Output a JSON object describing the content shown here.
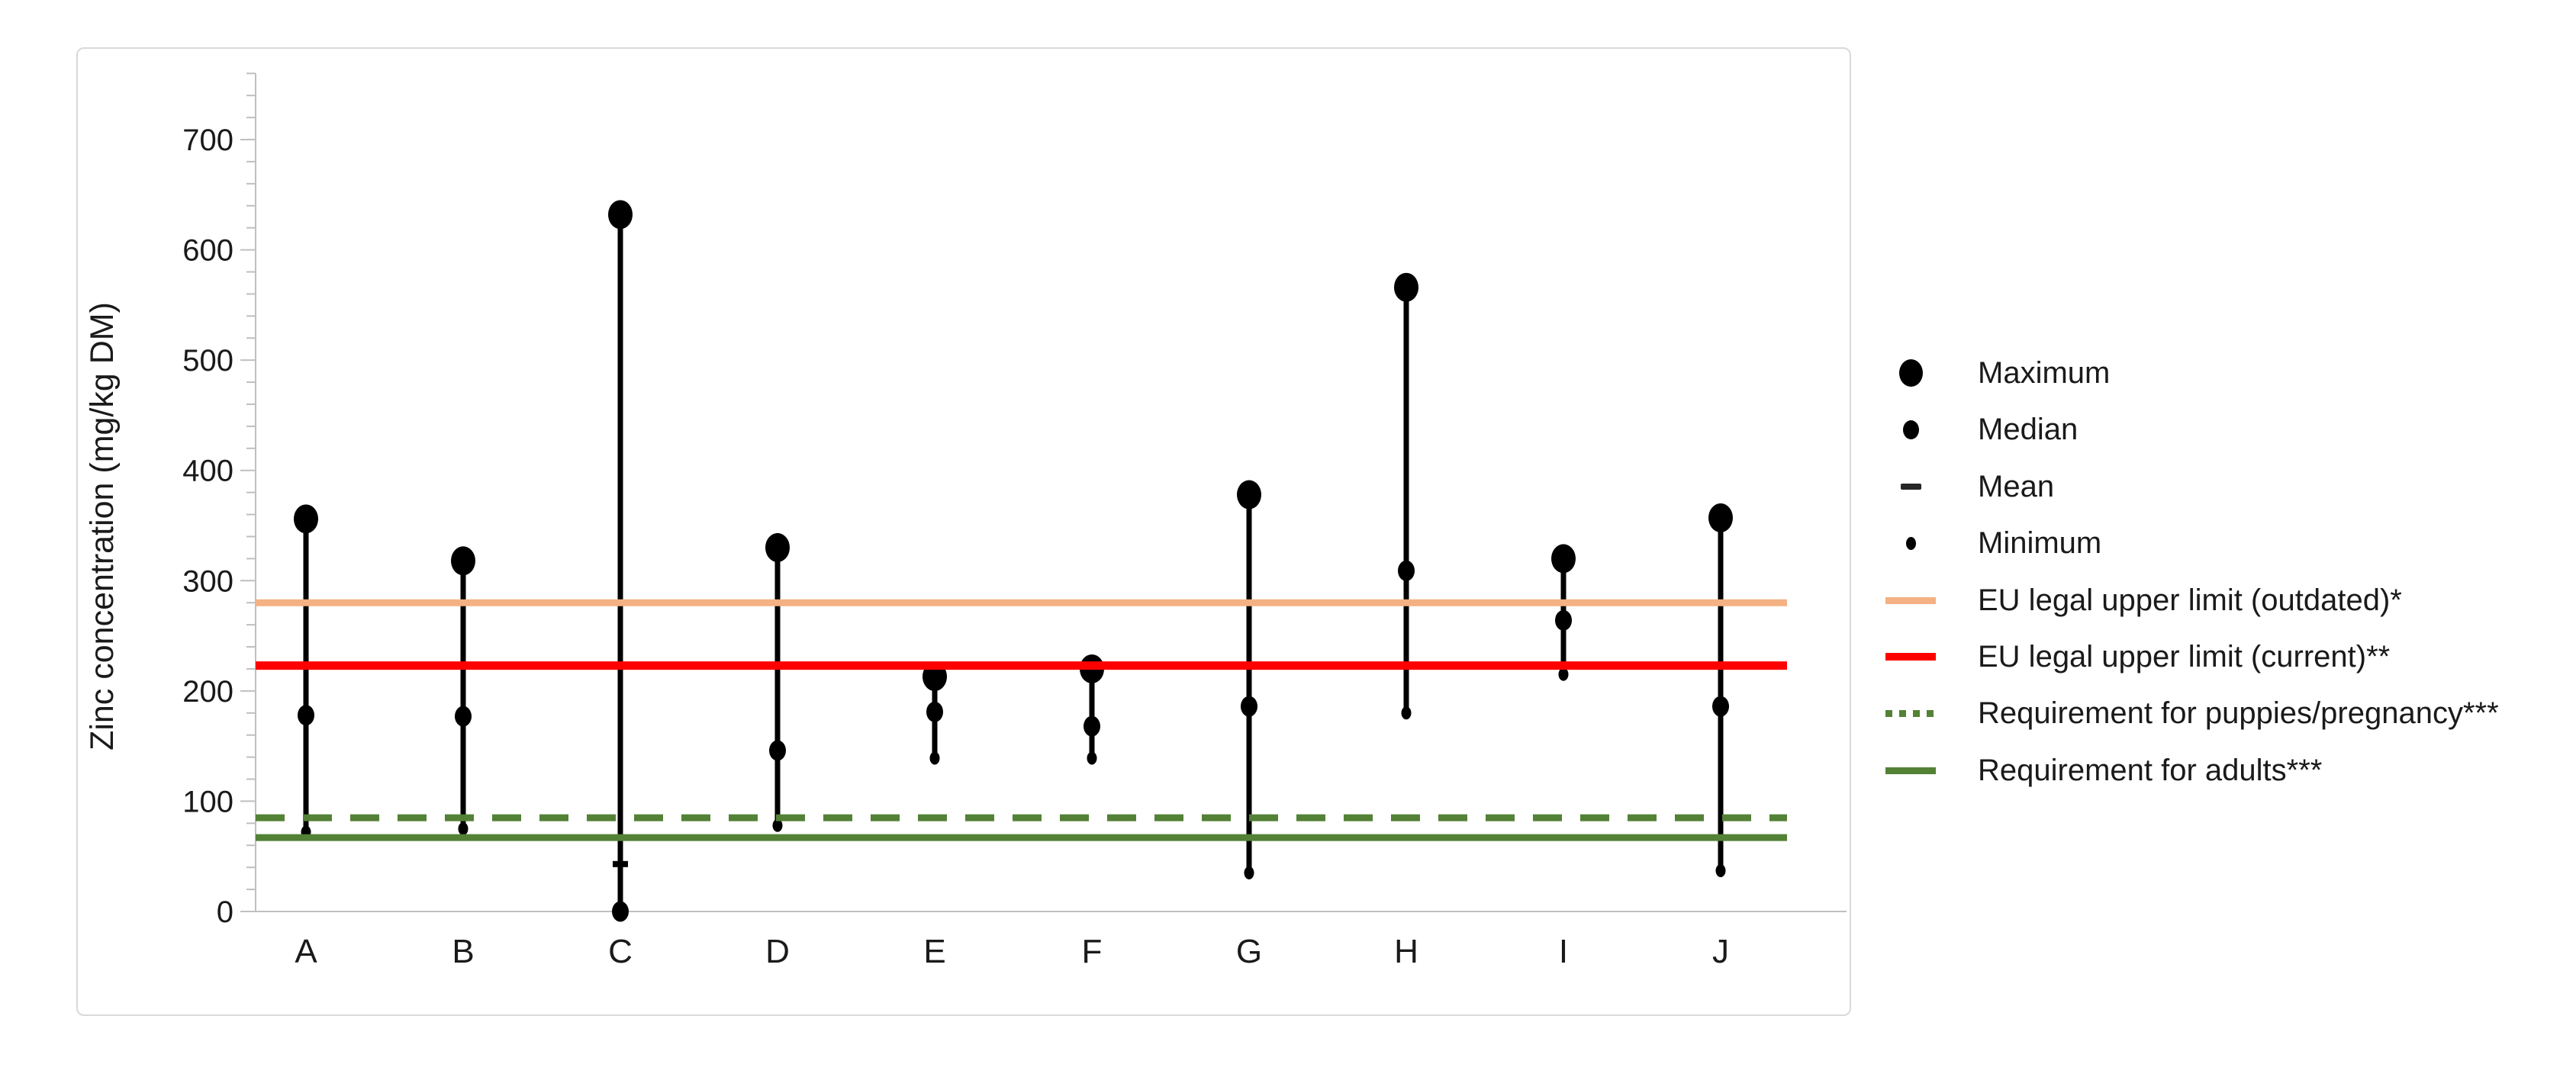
{
  "page": {
    "background": "#FFFFFF"
  },
  "colors": {
    "axis": "#BFBFBF",
    "card_border": "#D9D9D9",
    "text": "#1A1A1A",
    "stem": "#000000",
    "limit_outdated": "#F4B183",
    "limit_current": "#FF0000",
    "req_puppies": "#538135",
    "req_adults": "#538135"
  },
  "chart_data": {
    "type": "stem-range",
    "title": "",
    "xlabel": "",
    "ylabel": "Zinc concentration (mg/kg DM)",
    "categories": [
      "A",
      "B",
      "C",
      "D",
      "E",
      "F",
      "G",
      "H",
      "I",
      "J"
    ],
    "series": [
      {
        "name": "Maximum",
        "values": [
          356,
          318,
          632,
          330,
          213,
          220,
          378,
          566,
          320,
          357
        ]
      },
      {
        "name": "Median",
        "values": [
          178,
          177,
          0,
          146,
          181,
          168,
          186,
          309,
          264,
          186
        ]
      },
      {
        "name": "Mean",
        "values": [
          null,
          null,
          43,
          null,
          null,
          null,
          null,
          null,
          null,
          null
        ]
      },
      {
        "name": "Minimum",
        "values": [
          72,
          75,
          0,
          78,
          139,
          139,
          35,
          180,
          215,
          37
        ]
      }
    ],
    "reference_lines": [
      {
        "label": "EU legal upper limit (outdated)*",
        "value": 280,
        "color": "#F4B183",
        "style": "solid"
      },
      {
        "label": "EU legal upper limit (current)**",
        "value": 223,
        "color": "#FF0000",
        "style": "solid"
      },
      {
        "label": "Requirement for puppies/pregnancy***",
        "value": 85,
        "color": "#538135",
        "style": "dashed"
      },
      {
        "label": "Requirement for adults***",
        "value": 67,
        "color": "#538135",
        "style": "solid"
      }
    ],
    "ylim": [
      0,
      760
    ],
    "yticks": [
      0,
      100,
      200,
      300,
      400,
      500,
      600,
      700
    ],
    "minor_tick_step": 20,
    "grid": false,
    "legend_position": "right"
  },
  "legend": {
    "items": [
      {
        "label": "Maximum",
        "swatch": "dot-large"
      },
      {
        "label": "Median",
        "swatch": "dot-medium"
      },
      {
        "label": "Mean",
        "swatch": "dash"
      },
      {
        "label": "Minimum",
        "swatch": "dot-small"
      },
      {
        "label": "EU legal upper limit (outdated)*",
        "swatch": "line-outdated"
      },
      {
        "label": "EU legal upper limit (current)**",
        "swatch": "line-current"
      },
      {
        "label": "Requirement for puppies/pregnancy***",
        "swatch": "line-puppies"
      },
      {
        "label": "Requirement for adults***",
        "swatch": "line-adults"
      }
    ]
  }
}
